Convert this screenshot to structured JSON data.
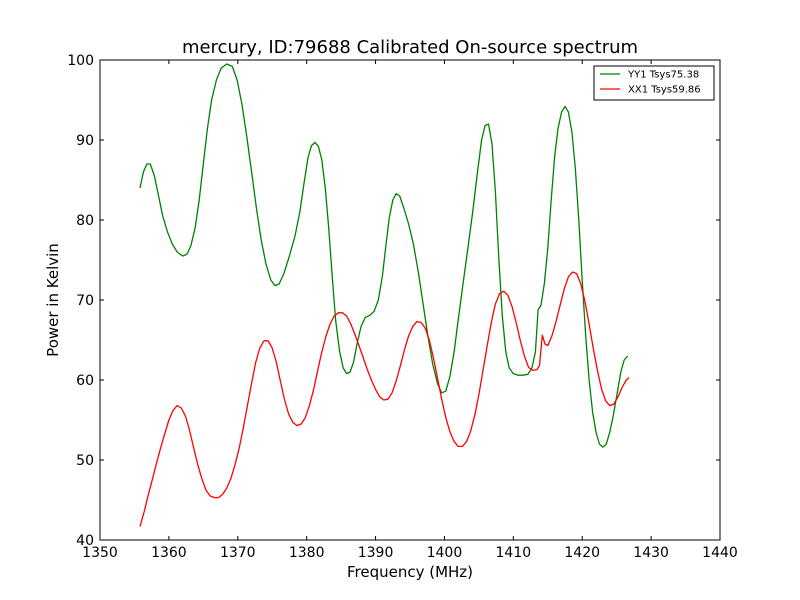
{
  "chart_data": {
    "type": "line",
    "title": "mercury, ID:79688 Calibrated On-source spectrum",
    "xlabel": "Frequency (MHz)",
    "ylabel": "Power in Kelvin",
    "xlim": [
      1350,
      1440
    ],
    "ylim": [
      40,
      100
    ],
    "xticks": [
      1350,
      1360,
      1370,
      1380,
      1390,
      1400,
      1410,
      1420,
      1430,
      1440
    ],
    "yticks": [
      40,
      50,
      60,
      70,
      80,
      90,
      100
    ],
    "xtick_labels": [
      "1350",
      "1360",
      "1370",
      "1380",
      "1390",
      "1400",
      "1410",
      "1420",
      "1430",
      "1440"
    ],
    "ytick_labels": [
      "40",
      "50",
      "60",
      "70",
      "80",
      "90",
      "100"
    ],
    "grid": false,
    "legend_position": "top-right",
    "series": [
      {
        "name": "YY1 Tsys75.38",
        "color": "#008000",
        "points": [
          [
            1355.8,
            84.0
          ],
          [
            1356.3,
            86.0
          ],
          [
            1356.8,
            87.0
          ],
          [
            1357.3,
            87.0
          ],
          [
            1357.9,
            85.5
          ],
          [
            1358.5,
            83.0
          ],
          [
            1359.1,
            80.5
          ],
          [
            1359.8,
            78.5
          ],
          [
            1360.5,
            77.0
          ],
          [
            1361.2,
            76.0
          ],
          [
            1362.0,
            75.5
          ],
          [
            1362.6,
            75.7
          ],
          [
            1363.2,
            76.8
          ],
          [
            1363.8,
            79.0
          ],
          [
            1364.4,
            82.5
          ],
          [
            1365.0,
            87.0
          ],
          [
            1365.6,
            91.5
          ],
          [
            1366.2,
            95.0
          ],
          [
            1366.9,
            97.5
          ],
          [
            1367.6,
            99.0
          ],
          [
            1368.4,
            99.5
          ],
          [
            1369.2,
            99.2
          ],
          [
            1369.9,
            97.5
          ],
          [
            1370.6,
            94.5
          ],
          [
            1371.3,
            90.5
          ],
          [
            1372.0,
            86.0
          ],
          [
            1372.7,
            81.5
          ],
          [
            1373.4,
            77.5
          ],
          [
            1374.1,
            74.5
          ],
          [
            1374.8,
            72.5
          ],
          [
            1375.4,
            71.8
          ],
          [
            1376.0,
            72.0
          ],
          [
            1376.7,
            73.3
          ],
          [
            1377.5,
            75.5
          ],
          [
            1378.3,
            78.0
          ],
          [
            1379.0,
            81.0
          ],
          [
            1379.6,
            84.5
          ],
          [
            1380.2,
            87.8
          ],
          [
            1380.7,
            89.3
          ],
          [
            1381.2,
            89.7
          ],
          [
            1381.7,
            89.2
          ],
          [
            1382.2,
            87.5
          ],
          [
            1382.7,
            84.0
          ],
          [
            1383.2,
            79.0
          ],
          [
            1383.7,
            73.0
          ],
          [
            1384.2,
            67.5
          ],
          [
            1384.8,
            63.5
          ],
          [
            1385.3,
            61.5
          ],
          [
            1385.8,
            60.8
          ],
          [
            1386.3,
            61.0
          ],
          [
            1386.8,
            62.2
          ],
          [
            1387.3,
            64.5
          ],
          [
            1387.9,
            66.7
          ],
          [
            1388.5,
            67.8
          ],
          [
            1389.2,
            68.1
          ],
          [
            1389.8,
            68.6
          ],
          [
            1390.4,
            70.0
          ],
          [
            1391.0,
            73.0
          ],
          [
            1391.5,
            76.8
          ],
          [
            1392.0,
            80.3
          ],
          [
            1392.5,
            82.5
          ],
          [
            1393.0,
            83.3
          ],
          [
            1393.5,
            83.0
          ],
          [
            1394.1,
            81.5
          ],
          [
            1394.8,
            79.5
          ],
          [
            1395.5,
            77.0
          ],
          [
            1396.2,
            73.5
          ],
          [
            1396.9,
            69.5
          ],
          [
            1397.6,
            65.5
          ],
          [
            1398.3,
            62.0
          ],
          [
            1399.0,
            59.5
          ],
          [
            1399.6,
            58.4
          ],
          [
            1400.2,
            58.6
          ],
          [
            1400.8,
            60.5
          ],
          [
            1401.4,
            63.5
          ],
          [
            1402.0,
            67.5
          ],
          [
            1402.7,
            72.0
          ],
          [
            1403.4,
            76.5
          ],
          [
            1404.1,
            81.0
          ],
          [
            1404.8,
            86.0
          ],
          [
            1405.4,
            90.0
          ],
          [
            1405.9,
            91.8
          ],
          [
            1406.4,
            92.0
          ],
          [
            1406.9,
            89.5
          ],
          [
            1407.4,
            83.5
          ],
          [
            1407.9,
            75.0
          ],
          [
            1408.4,
            68.0
          ],
          [
            1408.9,
            63.5
          ],
          [
            1409.4,
            61.5
          ],
          [
            1410.0,
            60.8
          ],
          [
            1410.7,
            60.6
          ],
          [
            1411.4,
            60.6
          ],
          [
            1412.1,
            60.7
          ],
          [
            1412.7,
            61.5
          ],
          [
            1413.2,
            63.5
          ],
          [
            1413.6,
            68.8
          ],
          [
            1414.0,
            69.3
          ],
          [
            1414.5,
            72.0
          ],
          [
            1415.0,
            76.5
          ],
          [
            1415.5,
            82.5
          ],
          [
            1416.0,
            88.0
          ],
          [
            1416.5,
            91.5
          ],
          [
            1417.0,
            93.5
          ],
          [
            1417.5,
            94.2
          ],
          [
            1418.0,
            93.5
          ],
          [
            1418.5,
            91.0
          ],
          [
            1419.0,
            86.5
          ],
          [
            1419.5,
            80.0
          ],
          [
            1420.0,
            72.5
          ],
          [
            1420.5,
            65.5
          ],
          [
            1421.0,
            60.0
          ],
          [
            1421.5,
            56.0
          ],
          [
            1422.0,
            53.5
          ],
          [
            1422.5,
            52.0
          ],
          [
            1423.0,
            51.6
          ],
          [
            1423.5,
            52.0
          ],
          [
            1424.0,
            53.5
          ],
          [
            1424.5,
            55.5
          ],
          [
            1425.0,
            58.0
          ],
          [
            1425.6,
            61.0
          ],
          [
            1426.1,
            62.5
          ],
          [
            1426.6,
            63.0
          ]
        ]
      },
      {
        "name": "XX1 Tsys59.86",
        "color": "#ff0000",
        "points": [
          [
            1355.8,
            41.7
          ],
          [
            1356.4,
            43.5
          ],
          [
            1357.0,
            45.6
          ],
          [
            1357.6,
            47.6
          ],
          [
            1358.2,
            49.6
          ],
          [
            1358.8,
            51.5
          ],
          [
            1359.4,
            53.3
          ],
          [
            1360.0,
            55.0
          ],
          [
            1360.6,
            56.2
          ],
          [
            1361.2,
            56.8
          ],
          [
            1361.8,
            56.5
          ],
          [
            1362.4,
            55.5
          ],
          [
            1363.0,
            53.7
          ],
          [
            1363.6,
            51.5
          ],
          [
            1364.2,
            49.4
          ],
          [
            1364.8,
            47.6
          ],
          [
            1365.4,
            46.2
          ],
          [
            1366.0,
            45.5
          ],
          [
            1366.6,
            45.3
          ],
          [
            1367.2,
            45.3
          ],
          [
            1367.8,
            45.7
          ],
          [
            1368.4,
            46.5
          ],
          [
            1369.0,
            47.7
          ],
          [
            1369.6,
            49.4
          ],
          [
            1370.2,
            51.5
          ],
          [
            1370.8,
            54.0
          ],
          [
            1371.4,
            56.8
          ],
          [
            1372.0,
            59.6
          ],
          [
            1372.6,
            62.2
          ],
          [
            1373.2,
            64.0
          ],
          [
            1373.8,
            64.9
          ],
          [
            1374.4,
            64.9
          ],
          [
            1375.0,
            64.0
          ],
          [
            1375.6,
            62.2
          ],
          [
            1376.2,
            59.8
          ],
          [
            1376.8,
            57.5
          ],
          [
            1377.4,
            55.7
          ],
          [
            1378.0,
            54.7
          ],
          [
            1378.6,
            54.3
          ],
          [
            1379.2,
            54.5
          ],
          [
            1379.8,
            55.3
          ],
          [
            1380.4,
            56.8
          ],
          [
            1381.0,
            58.8
          ],
          [
            1381.6,
            61.2
          ],
          [
            1382.2,
            63.5
          ],
          [
            1382.8,
            65.5
          ],
          [
            1383.4,
            67.0
          ],
          [
            1384.0,
            68.0
          ],
          [
            1384.6,
            68.4
          ],
          [
            1385.2,
            68.4
          ],
          [
            1385.8,
            68.0
          ],
          [
            1386.4,
            67.0
          ],
          [
            1387.0,
            65.7
          ],
          [
            1387.6,
            64.3
          ],
          [
            1388.2,
            62.8
          ],
          [
            1388.8,
            61.3
          ],
          [
            1389.4,
            60.0
          ],
          [
            1390.0,
            58.8
          ],
          [
            1390.6,
            57.9
          ],
          [
            1391.2,
            57.5
          ],
          [
            1391.8,
            57.6
          ],
          [
            1392.4,
            58.4
          ],
          [
            1393.0,
            59.9
          ],
          [
            1393.6,
            61.8
          ],
          [
            1394.2,
            63.8
          ],
          [
            1394.8,
            65.5
          ],
          [
            1395.4,
            66.7
          ],
          [
            1396.0,
            67.3
          ],
          [
            1396.6,
            67.2
          ],
          [
            1397.2,
            66.5
          ],
          [
            1397.8,
            65.0
          ],
          [
            1398.4,
            62.8
          ],
          [
            1399.0,
            60.2
          ],
          [
            1399.6,
            57.6
          ],
          [
            1400.2,
            55.3
          ],
          [
            1400.8,
            53.5
          ],
          [
            1401.4,
            52.3
          ],
          [
            1402.0,
            51.7
          ],
          [
            1402.6,
            51.7
          ],
          [
            1403.2,
            52.3
          ],
          [
            1403.8,
            53.6
          ],
          [
            1404.4,
            55.6
          ],
          [
            1405.0,
            58.2
          ],
          [
            1405.6,
            61.2
          ],
          [
            1406.2,
            64.3
          ],
          [
            1406.8,
            67.2
          ],
          [
            1407.4,
            69.5
          ],
          [
            1408.0,
            70.8
          ],
          [
            1408.6,
            71.1
          ],
          [
            1409.2,
            70.6
          ],
          [
            1409.8,
            69.2
          ],
          [
            1410.4,
            67.2
          ],
          [
            1411.0,
            65.0
          ],
          [
            1411.6,
            63.0
          ],
          [
            1412.2,
            61.6
          ],
          [
            1412.8,
            61.2
          ],
          [
            1413.4,
            61.3
          ],
          [
            1413.8,
            61.8
          ],
          [
            1414.2,
            65.6
          ],
          [
            1414.6,
            64.5
          ],
          [
            1415.0,
            64.3
          ],
          [
            1415.6,
            65.5
          ],
          [
            1416.2,
            67.3
          ],
          [
            1416.8,
            69.4
          ],
          [
            1417.4,
            71.4
          ],
          [
            1418.0,
            72.9
          ],
          [
            1418.6,
            73.5
          ],
          [
            1419.2,
            73.3
          ],
          [
            1419.8,
            72.0
          ],
          [
            1420.4,
            69.8
          ],
          [
            1421.0,
            67.0
          ],
          [
            1421.6,
            64.0
          ],
          [
            1422.2,
            61.2
          ],
          [
            1422.8,
            58.9
          ],
          [
            1423.4,
            57.4
          ],
          [
            1424.0,
            56.8
          ],
          [
            1424.6,
            57.0
          ],
          [
            1425.2,
            57.9
          ],
          [
            1425.8,
            59.1
          ],
          [
            1426.4,
            60.0
          ],
          [
            1426.8,
            60.3
          ]
        ]
      }
    ]
  }
}
